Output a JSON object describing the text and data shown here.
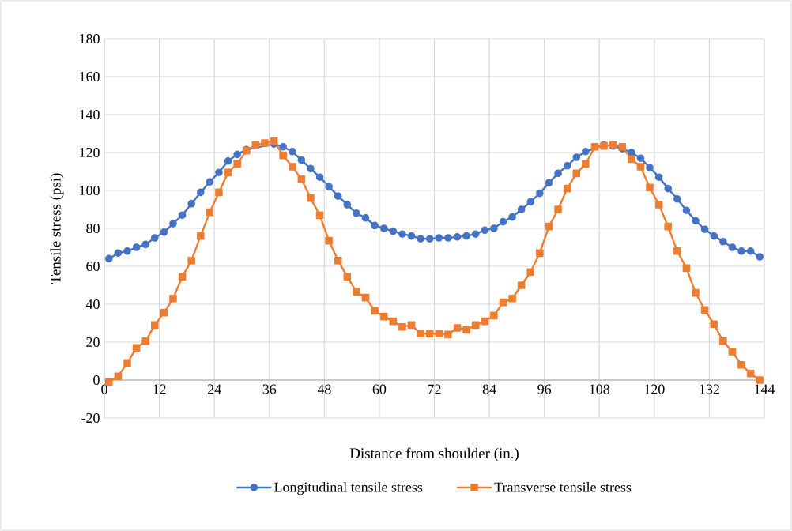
{
  "chart_data": {
    "type": "line",
    "xlabel": "Distance from shoulder (in.)",
    "ylabel": "Tensile stress (psi)",
    "xlim": [
      0,
      144
    ],
    "xticks": [
      0,
      12,
      24,
      36,
      48,
      60,
      72,
      84,
      96,
      108,
      120,
      132,
      144
    ],
    "ylim": [
      -20,
      180
    ],
    "yticks": [
      -20,
      0,
      20,
      40,
      60,
      80,
      100,
      120,
      140,
      160,
      180
    ],
    "grid": true,
    "legend": "bottom",
    "x": [
      1,
      3,
      5,
      7,
      9,
      11,
      13,
      15,
      17,
      19,
      21,
      23,
      25,
      27,
      29,
      31,
      33,
      35,
      37,
      39,
      41,
      43,
      45,
      47,
      49,
      51,
      53,
      55,
      57,
      59,
      61,
      63,
      65,
      67,
      69,
      71,
      73,
      75,
      77,
      79,
      81,
      83,
      85,
      87,
      89,
      91,
      93,
      95,
      97,
      99,
      101,
      103,
      105,
      107,
      109,
      111,
      113,
      115,
      117,
      119,
      121,
      123,
      125,
      127,
      129,
      131,
      133,
      135,
      137,
      139,
      141,
      143
    ],
    "series": [
      {
        "name": "Longitudinal tensile stress",
        "color": "#4472c4",
        "marker": "circle",
        "values": [
          64,
          67,
          68,
          70,
          71.5,
          75,
          78,
          82.5,
          87,
          93,
          99,
          104.5,
          109.5,
          115.5,
          119,
          121.5,
          null,
          null,
          124.5,
          123,
          120.5,
          116,
          111.5,
          107,
          102,
          97,
          92.5,
          88,
          85.5,
          81.5,
          80,
          78.5,
          77,
          76,
          74.5,
          74.5,
          75,
          75,
          75.5,
          76,
          77,
          79,
          80,
          83.5,
          86,
          90,
          94,
          98.5,
          104,
          109,
          113,
          117.5,
          120.5,
          null,
          124,
          123.5,
          122,
          120,
          117,
          112,
          107,
          101,
          95.5,
          89.5,
          84,
          79.5,
          76,
          73,
          70,
          68,
          68,
          65
        ]
      },
      {
        "name": "Transverse tensile stress",
        "color": "#ed7d31",
        "marker": "square",
        "values": [
          -1,
          2,
          9,
          17,
          20.5,
          29,
          35.5,
          43,
          54.5,
          63,
          76,
          88.5,
          99,
          109.5,
          114,
          121,
          124,
          125,
          126,
          118.5,
          112.5,
          106,
          96,
          87,
          73.5,
          63,
          54.5,
          46.5,
          43.5,
          36.5,
          33.5,
          31,
          28,
          29,
          24.5,
          24.5,
          24.5,
          24,
          27.5,
          26.5,
          29,
          31,
          34,
          41,
          43,
          50,
          57,
          67,
          81,
          90,
          101,
          109,
          114,
          123,
          123.5,
          124,
          123,
          116.5,
          112.5,
          101.5,
          92.5,
          81,
          68,
          59,
          46,
          37,
          29.5,
          20.5,
          15,
          8,
          3.5,
          0
        ]
      }
    ]
  }
}
